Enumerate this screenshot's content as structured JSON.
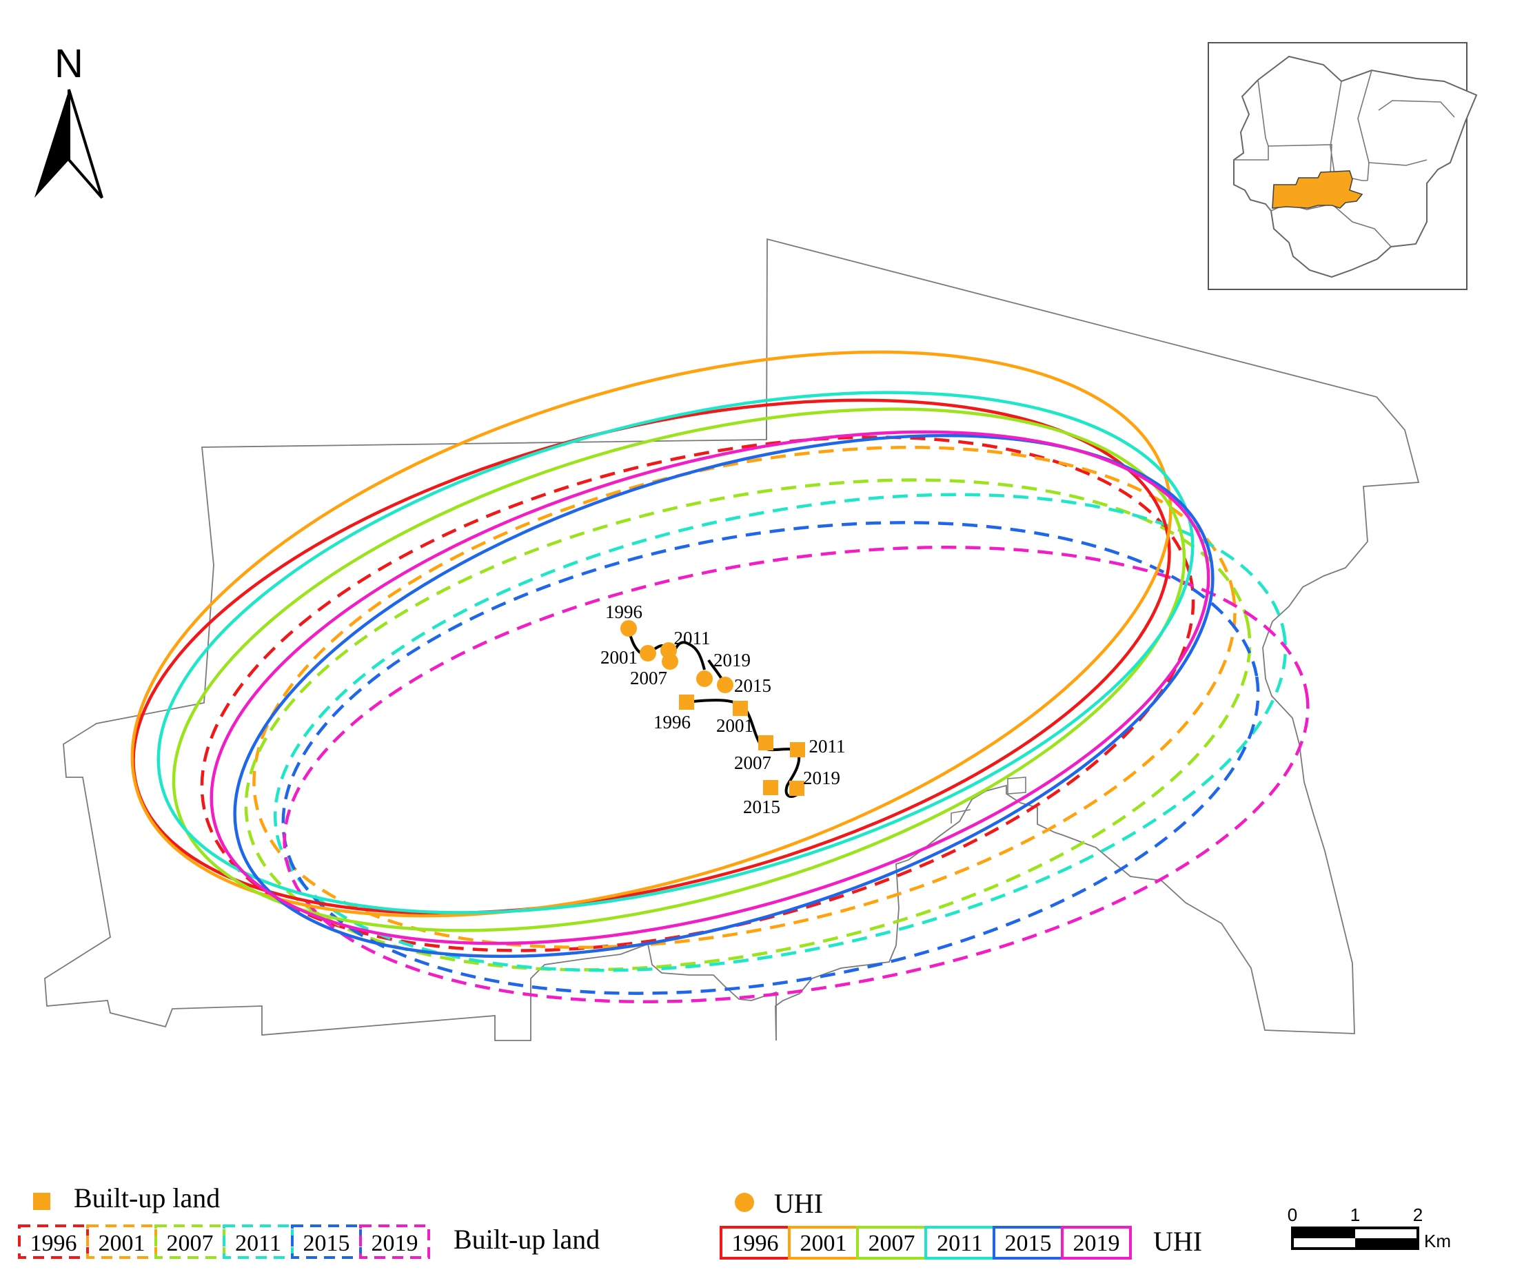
{
  "north_arrow": {
    "label": "N"
  },
  "colors": {
    "1996": "#f01818",
    "2001": "#ffa20d",
    "2007": "#9be31c",
    "2011": "#1fe6c8",
    "2015": "#1f66e8",
    "2019": "#f01ec4",
    "marker_fill": "#f8a51b",
    "inset_highlight": "#f8a51b",
    "trajectory": "#000000"
  },
  "uhi_centers": [
    {
      "year": "1996",
      "label": "1996"
    },
    {
      "year": "2001",
      "label": "2001"
    },
    {
      "year": "2007",
      "label": "2007"
    },
    {
      "year": "2011",
      "label": "2011"
    },
    {
      "year": "2019",
      "label": "2019"
    },
    {
      "year": "2015",
      "label": "2015"
    }
  ],
  "builtup_centers": [
    {
      "year": "1996",
      "label": "1996"
    },
    {
      "year": "2001",
      "label": "2001"
    },
    {
      "year": "2011",
      "label": "2011"
    },
    {
      "year": "2007",
      "label": "2007"
    },
    {
      "year": "2019",
      "label": "2019"
    },
    {
      "year": "2015",
      "label": "2015"
    }
  ],
  "legend": {
    "builtup_marker_label": "Built-up land",
    "builtup_ellipse_label": "Built-up land",
    "uhi_marker_label": "UHI",
    "uhi_ellipse_label": "UHI",
    "years": [
      "1996",
      "2001",
      "2007",
      "2011",
      "2015",
      "2019"
    ]
  },
  "scale_bar": {
    "ticks": [
      "0",
      "1",
      "2"
    ],
    "unit": "Km"
  }
}
